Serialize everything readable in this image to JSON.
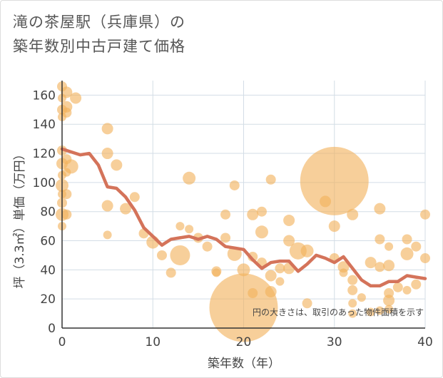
{
  "chart_data": {
    "type": "scatter",
    "title_lines": [
      "滝の茶屋駅（兵庫県）の",
      "築年数別中古戸建て価格"
    ],
    "xlabel": "築年数（年）",
    "ylabel": "坪（3.3㎡）単価（万円）",
    "xlim": [
      0,
      40
    ],
    "ylim": [
      0,
      170
    ],
    "x_ticks": [
      0,
      10,
      20,
      30,
      40
    ],
    "y_ticks": [
      0,
      20,
      40,
      60,
      80,
      100,
      120,
      140,
      160
    ],
    "annotation": "円の大きさは、取引のあった物件面積を示す",
    "grid": true,
    "colors": {
      "bubble": "#f2b25c",
      "line": "#d4735a",
      "grid": "#d3dde6",
      "axis": "#333333"
    },
    "bubbles": [
      {
        "x": 0,
        "y": 166,
        "s": 7
      },
      {
        "x": 0,
        "y": 158,
        "s": 6
      },
      {
        "x": 0,
        "y": 150,
        "s": 7
      },
      {
        "x": 0,
        "y": 145,
        "s": 6
      },
      {
        "x": 0.5,
        "y": 162,
        "s": 8
      },
      {
        "x": 0.5,
        "y": 152,
        "s": 8
      },
      {
        "x": 0.5,
        "y": 148,
        "s": 7
      },
      {
        "x": 1.5,
        "y": 158,
        "s": 8
      },
      {
        "x": 0,
        "y": 122,
        "s": 7
      },
      {
        "x": 0,
        "y": 113,
        "s": 8
      },
      {
        "x": 0,
        "y": 105,
        "s": 6
      },
      {
        "x": 0,
        "y": 98,
        "s": 9
      },
      {
        "x": 0,
        "y": 92,
        "s": 6
      },
      {
        "x": 0,
        "y": 86,
        "s": 7
      },
      {
        "x": 0,
        "y": 78,
        "s": 9
      },
      {
        "x": 0,
        "y": 70,
        "s": 6
      },
      {
        "x": 0.5,
        "y": 116,
        "s": 7
      },
      {
        "x": 0.5,
        "y": 107,
        "s": 6
      },
      {
        "x": 0.5,
        "y": 92,
        "s": 7
      },
      {
        "x": 0.5,
        "y": 78,
        "s": 7
      },
      {
        "x": 1,
        "y": 111,
        "s": 10
      },
      {
        "x": 5,
        "y": 137,
        "s": 8
      },
      {
        "x": 5,
        "y": 120,
        "s": 8
      },
      {
        "x": 5,
        "y": 84,
        "s": 8
      },
      {
        "x": 5,
        "y": 64,
        "s": 6
      },
      {
        "x": 6,
        "y": 112,
        "s": 8
      },
      {
        "x": 7,
        "y": 82,
        "s": 8
      },
      {
        "x": 8,
        "y": 90,
        "s": 7
      },
      {
        "x": 9,
        "y": 65,
        "s": 7
      },
      {
        "x": 10,
        "y": 59,
        "s": 9
      },
      {
        "x": 11,
        "y": 50,
        "s": 7
      },
      {
        "x": 12,
        "y": 38,
        "s": 7
      },
      {
        "x": 13,
        "y": 70,
        "s": 6
      },
      {
        "x": 13,
        "y": 50,
        "s": 14
      },
      {
        "x": 14,
        "y": 103,
        "s": 9
      },
      {
        "x": 14,
        "y": 68,
        "s": 6
      },
      {
        "x": 15,
        "y": 62,
        "s": 7
      },
      {
        "x": 16,
        "y": 56,
        "s": 7
      },
      {
        "x": 17,
        "y": 39,
        "s": 7
      },
      {
        "x": 17,
        "y": 38,
        "s": 6
      },
      {
        "x": 18,
        "y": 78,
        "s": 7
      },
      {
        "x": 18,
        "y": 62,
        "s": 7
      },
      {
        "x": 19,
        "y": 98,
        "s": 7
      },
      {
        "x": 19,
        "y": 51,
        "s": 10
      },
      {
        "x": 20,
        "y": 40,
        "s": 9
      },
      {
        "x": 20,
        "y": 14,
        "s": 48
      },
      {
        "x": 21,
        "y": 78,
        "s": 8
      },
      {
        "x": 21,
        "y": 24,
        "s": 7
      },
      {
        "x": 21,
        "y": 49,
        "s": 7
      },
      {
        "x": 22,
        "y": 80,
        "s": 7
      },
      {
        "x": 22,
        "y": 66,
        "s": 9
      },
      {
        "x": 22,
        "y": 45,
        "s": 7
      },
      {
        "x": 23,
        "y": 102,
        "s": 7
      },
      {
        "x": 23,
        "y": 36,
        "s": 8
      },
      {
        "x": 23,
        "y": 25,
        "s": 8
      },
      {
        "x": 24,
        "y": 41,
        "s": 7
      },
      {
        "x": 24,
        "y": 32,
        "s": 6
      },
      {
        "x": 25,
        "y": 74,
        "s": 8
      },
      {
        "x": 25,
        "y": 60,
        "s": 8
      },
      {
        "x": 25,
        "y": 41,
        "s": 8
      },
      {
        "x": 26,
        "y": 53,
        "s": 12
      },
      {
        "x": 27,
        "y": 53,
        "s": 9
      },
      {
        "x": 27,
        "y": 17,
        "s": 7
      },
      {
        "x": 29,
        "y": 87,
        "s": 8
      },
      {
        "x": 30,
        "y": 101,
        "s": 48
      },
      {
        "x": 30,
        "y": 70,
        "s": 8
      },
      {
        "x": 30,
        "y": 48,
        "s": 7
      },
      {
        "x": 31,
        "y": 42,
        "s": 8
      },
      {
        "x": 31,
        "y": 38,
        "s": 6
      },
      {
        "x": 32,
        "y": 78,
        "s": 8
      },
      {
        "x": 32,
        "y": 33,
        "s": 7
      },
      {
        "x": 32,
        "y": 26,
        "s": 7
      },
      {
        "x": 32,
        "y": 17,
        "s": 6
      },
      {
        "x": 32,
        "y": 10,
        "s": 6
      },
      {
        "x": 33,
        "y": 21,
        "s": 6
      },
      {
        "x": 34,
        "y": 45,
        "s": 8
      },
      {
        "x": 34,
        "y": 11,
        "s": 6
      },
      {
        "x": 35,
        "y": 82,
        "s": 8
      },
      {
        "x": 35,
        "y": 61,
        "s": 7
      },
      {
        "x": 35,
        "y": 42,
        "s": 7
      },
      {
        "x": 35,
        "y": 12,
        "s": 6
      },
      {
        "x": 36,
        "y": 56,
        "s": 6
      },
      {
        "x": 36,
        "y": 43,
        "s": 8
      },
      {
        "x": 36,
        "y": 24,
        "s": 7
      },
      {
        "x": 36,
        "y": 19,
        "s": 8
      },
      {
        "x": 36,
        "y": 13,
        "s": 6
      },
      {
        "x": 37,
        "y": 28,
        "s": 7
      },
      {
        "x": 38,
        "y": 61,
        "s": 7
      },
      {
        "x": 38,
        "y": 51,
        "s": 9
      },
      {
        "x": 38,
        "y": 26,
        "s": 6
      },
      {
        "x": 39,
        "y": 56,
        "s": 7
      },
      {
        "x": 39,
        "y": 30,
        "s": 7
      },
      {
        "x": 40,
        "y": 78,
        "s": 7
      },
      {
        "x": 40,
        "y": 48,
        "s": 7
      }
    ],
    "trend": {
      "x": [
        0,
        1,
        2,
        3,
        4,
        5,
        6,
        7,
        8,
        9,
        10,
        11,
        12,
        13,
        14,
        15,
        16,
        17,
        18,
        19,
        20,
        21,
        22,
        23,
        24,
        25,
        26,
        27,
        28,
        29,
        30,
        31,
        32,
        33,
        34,
        35,
        36,
        37,
        38,
        39,
        40
      ],
      "y": [
        123,
        121,
        119,
        120,
        112,
        97,
        96,
        90,
        81,
        69,
        63,
        57,
        61,
        62,
        63,
        61,
        63,
        61,
        56,
        55,
        54,
        47,
        41,
        45,
        46,
        46,
        39,
        44,
        50,
        48,
        45,
        49,
        41,
        33,
        29,
        29,
        32,
        32,
        36,
        35,
        34
      ]
    }
  }
}
